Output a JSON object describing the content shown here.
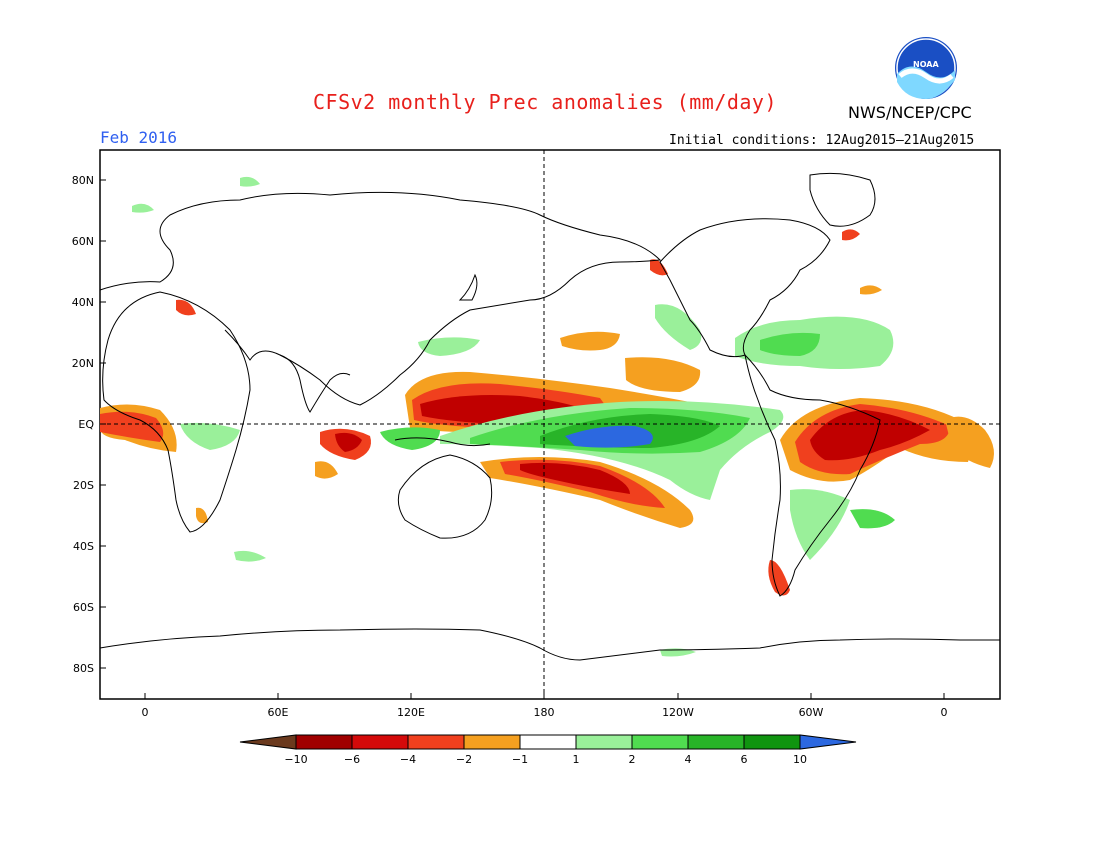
{
  "header": {
    "title": "CFSv2 monthly Prec anomalies (mm/day)",
    "agency": "NWS/NCEP/CPC",
    "logo_text": "NOAA",
    "month": "Feb 2016",
    "initial_conditions": "Initial conditions: 12Aug2015–21Aug2015"
  },
  "map": {
    "projection": "cylindrical-equidistant",
    "center_longitude": "180",
    "lat_labels": [
      "80N",
      "60N",
      "40N",
      "20N",
      "EQ",
      "20S",
      "40S",
      "60S",
      "80S"
    ],
    "lon_labels": [
      "0",
      "60E",
      "120E",
      "180",
      "120W",
      "60W",
      "0"
    ],
    "reference_lines": [
      "equator",
      "dateline"
    ],
    "features": [
      {
        "name": "tropical-pacific-wet",
        "color": "#1e6ee6",
        "level": "10"
      },
      {
        "name": "equatorial-pacific-wet",
        "color": "#1e9e1e",
        "level": "6"
      },
      {
        "name": "west-pacific-dry-north",
        "color": "#c00000",
        "level": "-6"
      },
      {
        "name": "west-pacific-dry-south",
        "color": "#e8401c",
        "level": "-4"
      },
      {
        "name": "brazil-dry",
        "color": "#c00000",
        "level": "-6"
      },
      {
        "name": "gulf-of-mexico-wet",
        "color": "#88e888",
        "level": "2"
      }
    ]
  },
  "colorbar": {
    "labels": [
      "-10",
      "-6",
      "-4",
      "-2",
      "-1",
      "1",
      "2",
      "4",
      "6",
      "10"
    ],
    "colors": [
      "#6b3a1e",
      "#a00000",
      "#d40a0a",
      "#f0401e",
      "#f5a020",
      "#ffffff",
      "#9af09a",
      "#50dc50",
      "#28b428",
      "#109410",
      "#2c68e0"
    ]
  }
}
